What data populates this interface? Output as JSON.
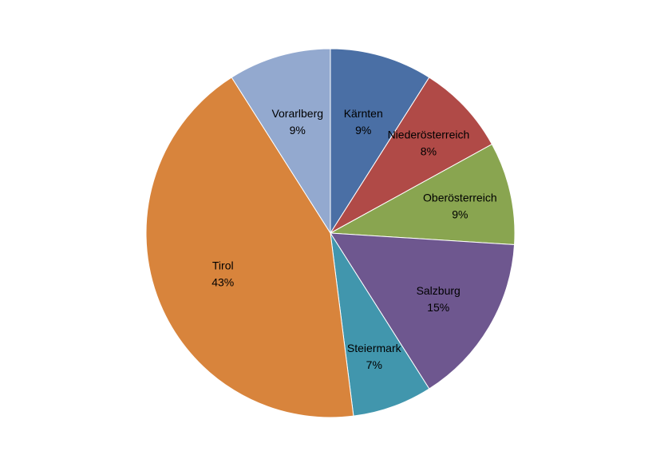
{
  "chart_data": {
    "type": "pie",
    "title": "",
    "slices": [
      {
        "label": "Kärnten",
        "value": 9,
        "percent_label": "9%",
        "color": "#4a6fa5"
      },
      {
        "label": "Niederösterreich",
        "value": 8,
        "percent_label": "8%",
        "color": "#b04a47"
      },
      {
        "label": "Oberösterreich",
        "value": 9,
        "percent_label": "9%",
        "color": "#89a550"
      },
      {
        "label": "Salzburg",
        "value": 15,
        "percent_label": "15%",
        "color": "#6e578f"
      },
      {
        "label": "Steiermark",
        "value": 7,
        "percent_label": "7%",
        "color": "#4196ad"
      },
      {
        "label": "Tirol",
        "value": 43,
        "percent_label": "43%",
        "color": "#d8843c"
      },
      {
        "label": "Vorarlberg",
        "value": 9,
        "percent_label": "9%",
        "color": "#93a9cf"
      }
    ],
    "start_angle": "top",
    "direction": "clockwise",
    "legend": "none",
    "labels_inside": true
  }
}
